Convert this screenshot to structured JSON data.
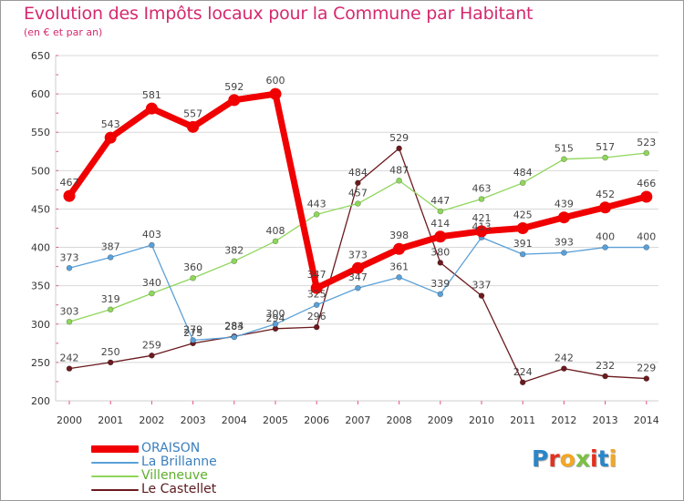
{
  "title": "Evolution des Impôts locaux pour la Commune par Habitant",
  "subtitle": "(en € et par an)",
  "logo_text": "Proxiti",
  "colors": {
    "title": "#d6286e",
    "grid": "#d8d8d8",
    "axis_tick": "#e8527e"
  },
  "chart_data": {
    "type": "line",
    "title": "Evolution des Impôts locaux pour la Commune par Habitant",
    "subtitle": "(en € et par an)",
    "xlabel": "",
    "ylabel": "",
    "x": [
      "2000",
      "2001",
      "2002",
      "2003",
      "2004",
      "2005",
      "2006",
      "2007",
      "2008",
      "2009",
      "2010",
      "2011",
      "2012",
      "2013",
      "2014"
    ],
    "ylim": [
      200,
      650
    ],
    "yticks": [
      200,
      250,
      300,
      350,
      400,
      450,
      500,
      550,
      600,
      650
    ],
    "grid": "horizontal",
    "legend_position": "bottom-left",
    "series": [
      {
        "name": "Le Castellet",
        "color": "#6b1a1e",
        "style": "thin",
        "values": [
          242,
          250,
          259,
          275,
          284,
          294,
          296,
          484,
          529,
          380,
          337,
          224,
          242,
          232,
          229
        ],
        "labels": [
          "242",
          "250",
          "259",
          "275",
          "284",
          "294",
          "296",
          "484",
          "529",
          "380",
          "337",
          "224",
          "242",
          "232",
          "229"
        ]
      },
      {
        "name": "Villeneuve",
        "color": "#8fd65a",
        "style": "thin",
        "values": [
          303,
          319,
          340,
          360,
          382,
          408,
          443,
          457,
          487,
          447,
          463,
          484,
          515,
          517,
          523
        ],
        "labels": [
          "303",
          "319",
          "340",
          "360",
          "382",
          "408",
          "443",
          "457",
          "487",
          "447",
          "463",
          "484",
          "515",
          "517",
          "523"
        ]
      },
      {
        "name": "La Brillanne",
        "color": "#5aa0d8",
        "style": "thin",
        "values": [
          373,
          387,
          403,
          279,
          283,
          300,
          325,
          347,
          361,
          339,
          413,
          391,
          393,
          400,
          400
        ],
        "labels": [
          "373",
          "387",
          "403",
          "279",
          "283",
          "300",
          "325",
          "347",
          "361",
          "339",
          "413",
          "391",
          "393",
          "400",
          "400"
        ]
      },
      {
        "name": "ORAISON",
        "color": "#f00000",
        "style": "thick",
        "values": [
          467,
          543,
          581,
          557,
          592,
          600,
          347,
          373,
          398,
          414,
          421,
          425,
          439,
          452,
          466
        ],
        "labels": [
          "467",
          "543",
          "581",
          "557",
          "592",
          "600",
          "347",
          "373",
          "398",
          "414",
          "421",
          "425",
          "439",
          "452",
          "466"
        ]
      }
    ],
    "legend": [
      "ORAISON",
      "La Brillanne",
      "Villeneuve",
      "Le Castellet"
    ]
  }
}
